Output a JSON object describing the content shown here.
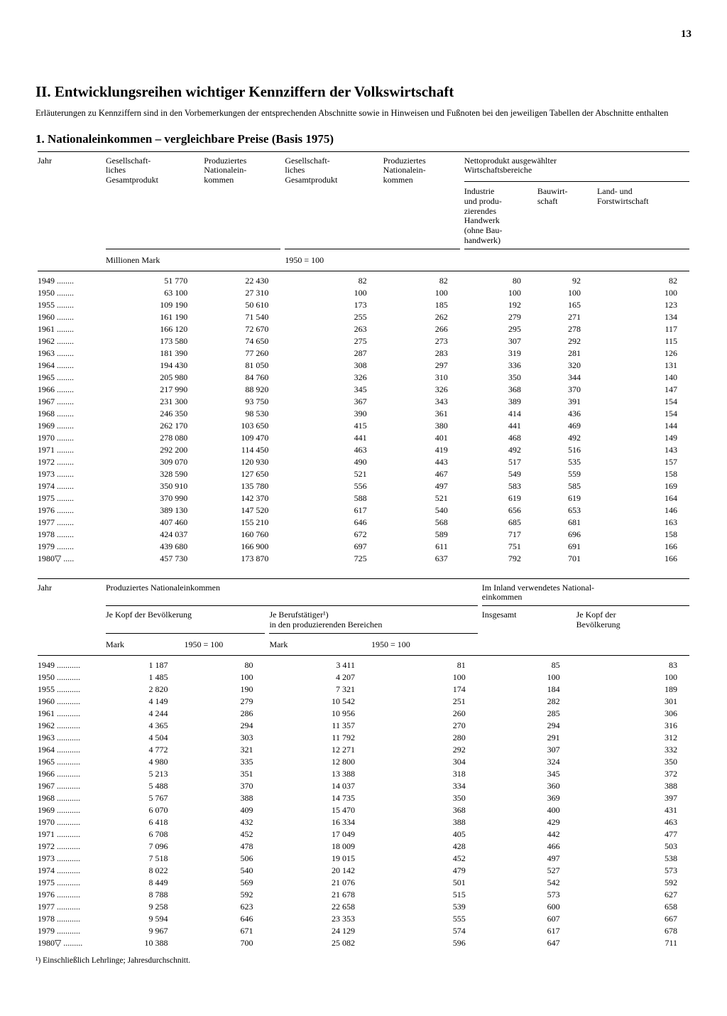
{
  "page_number": "13",
  "main_heading": "II. Entwicklungsreihen wichtiger Kennziffern der Volkswirtschaft",
  "intro_text": "Erläuterungen zu Kennziffern sind in den Vorbemerkungen der entsprechenden Abschnitte sowie in Hinweisen und Fußnoten bei den jeweiligen Tabellen der Abschnitte enthalten",
  "section_heading": "1. Nationaleinkommen – vergleichbare Preise (Basis 1975)",
  "table1": {
    "col_year": "Jahr",
    "col_gsp": "Gesellschaft-\nliches\nGesamtprodukt",
    "col_pni": "Produziertes\nNationalein-\nkommen",
    "col_gsp2": "Gesellschaft-\nliches\nGesamtprodukt",
    "col_pni2": "Produziertes\nNationalein-\nkommen",
    "col_netto_group": "Nettoprodukt ausgewählter\nWirtschaftsbereiche",
    "col_ind": "Industrie\nund produ-\nzierendes\nHandwerk\n(ohne Bau-\nhandwerk)",
    "col_bau": "Bauwirt-\nschaft",
    "col_land": "Land- und\nForstwirtschaft",
    "unit_mill": "Millionen Mark",
    "unit_idx": "1950 = 100",
    "rows": [
      {
        "y": "1949",
        "dots": "........",
        "c": [
          "51 770",
          "22 430",
          "82",
          "82",
          "80",
          "92",
          "82"
        ]
      },
      {
        "y": "1950",
        "dots": "........",
        "c": [
          "63 100",
          "27 310",
          "100",
          "100",
          "100",
          "100",
          "100"
        ]
      },
      {
        "y": "1955",
        "dots": "........",
        "c": [
          "109 190",
          "50 610",
          "173",
          "185",
          "192",
          "165",
          "123"
        ]
      },
      {
        "y": "1960",
        "dots": "........",
        "c": [
          "161 190",
          "71 540",
          "255",
          "262",
          "279",
          "271",
          "134"
        ]
      },
      {
        "y": "1961",
        "dots": "........",
        "c": [
          "166 120",
          "72 670",
          "263",
          "266",
          "295",
          "278",
          "117"
        ]
      },
      {
        "y": "1962",
        "dots": "........",
        "c": [
          "173 580",
          "74 650",
          "275",
          "273",
          "307",
          "292",
          "115"
        ]
      },
      {
        "y": "1963",
        "dots": "........",
        "c": [
          "181 390",
          "77 260",
          "287",
          "283",
          "319",
          "281",
          "126"
        ]
      },
      {
        "y": "1964",
        "dots": "........",
        "c": [
          "194 430",
          "81 050",
          "308",
          "297",
          "336",
          "320",
          "131"
        ]
      },
      {
        "y": "1965",
        "dots": "........",
        "c": [
          "205 980",
          "84 760",
          "326",
          "310",
          "350",
          "344",
          "140"
        ]
      },
      {
        "y": "1966",
        "dots": "........",
        "c": [
          "217 990",
          "88 920",
          "345",
          "326",
          "368",
          "370",
          "147"
        ]
      },
      {
        "y": "1967",
        "dots": "........",
        "c": [
          "231 300",
          "93 750",
          "367",
          "343",
          "389",
          "391",
          "154"
        ]
      },
      {
        "y": "1968",
        "dots": "........",
        "c": [
          "246 350",
          "98 530",
          "390",
          "361",
          "414",
          "436",
          "154"
        ]
      },
      {
        "y": "1969",
        "dots": "........",
        "c": [
          "262 170",
          "103 650",
          "415",
          "380",
          "441",
          "469",
          "144"
        ]
      },
      {
        "y": "1970",
        "dots": "........",
        "c": [
          "278 080",
          "109 470",
          "441",
          "401",
          "468",
          "492",
          "149"
        ]
      },
      {
        "y": "1971",
        "dots": "........",
        "c": [
          "292 200",
          "114 450",
          "463",
          "419",
          "492",
          "516",
          "143"
        ]
      },
      {
        "y": "1972",
        "dots": "........",
        "c": [
          "309 070",
          "120 930",
          "490",
          "443",
          "517",
          "535",
          "157"
        ]
      },
      {
        "y": "1973",
        "dots": "........",
        "c": [
          "328 590",
          "127 650",
          "521",
          "467",
          "549",
          "559",
          "158"
        ]
      },
      {
        "y": "1974",
        "dots": "........",
        "c": [
          "350 910",
          "135 780",
          "556",
          "497",
          "583",
          "585",
          "169"
        ]
      },
      {
        "y": "1975",
        "dots": "........",
        "c": [
          "370 990",
          "142 370",
          "588",
          "521",
          "619",
          "619",
          "164"
        ]
      },
      {
        "y": "1976",
        "dots": "........",
        "c": [
          "389 130",
          "147 520",
          "617",
          "540",
          "656",
          "653",
          "146"
        ]
      },
      {
        "y": "1977",
        "dots": "........",
        "c": [
          "407 460",
          "155 210",
          "646",
          "568",
          "685",
          "681",
          "163"
        ]
      },
      {
        "y": "1978",
        "dots": "........",
        "c": [
          "424 037",
          "160 760",
          "672",
          "589",
          "717",
          "696",
          "158"
        ]
      },
      {
        "y": "1979",
        "dots": "........",
        "c": [
          "439 680",
          "166 900",
          "697",
          "611",
          "751",
          "691",
          "166"
        ]
      },
      {
        "y": "1980▽",
        "dots": " .....",
        "c": [
          "457 730",
          "173 870",
          "725",
          "637",
          "792",
          "701",
          "166"
        ]
      }
    ]
  },
  "table2": {
    "col_year": "Jahr",
    "col_pni_group": "Produziertes Nationaleinkommen",
    "col_pop_group": "Je Kopf der Bevölkerung",
    "col_emp_group": "Je Berufstätiger¹)\nin den produzierenden Bereichen",
    "col_inland_group": "Im Inland verwendetes National-\neinkommen",
    "col_insg": "Insgesamt",
    "col_kopf": "Je Kopf der\nBevölkerung",
    "unit_mark": "Mark",
    "unit_idx": "1950 = 100",
    "rows": [
      {
        "y": "1949",
        "dots": " ...........",
        "c": [
          "1 187",
          "80",
          "3 411",
          "81",
          "85",
          "83"
        ]
      },
      {
        "y": "1950",
        "dots": " ...........",
        "c": [
          "1 485",
          "100",
          "4 207",
          "100",
          "100",
          "100"
        ]
      },
      {
        "y": "1955",
        "dots": " ...........",
        "c": [
          "2 820",
          "190",
          "7 321",
          "174",
          "184",
          "189"
        ]
      },
      {
        "y": "1960",
        "dots": " ...........",
        "c": [
          "4 149",
          "279",
          "10 542",
          "251",
          "282",
          "301"
        ]
      },
      {
        "y": "1961",
        "dots": " ...........",
        "c": [
          "4 244",
          "286",
          "10 956",
          "260",
          "285",
          "306"
        ]
      },
      {
        "y": "1962",
        "dots": " ...........",
        "c": [
          "4 365",
          "294",
          "11 357",
          "270",
          "294",
          "316"
        ]
      },
      {
        "y": "1963",
        "dots": " ...........",
        "c": [
          "4 504",
          "303",
          "11 792",
          "280",
          "291",
          "312"
        ]
      },
      {
        "y": "1964",
        "dots": " ...........",
        "c": [
          "4 772",
          "321",
          "12 271",
          "292",
          "307",
          "332"
        ]
      },
      {
        "y": "1965",
        "dots": " ...........",
        "c": [
          "4 980",
          "335",
          "12 800",
          "304",
          "324",
          "350"
        ]
      },
      {
        "y": "1966",
        "dots": " ...........",
        "c": [
          "5 213",
          "351",
          "13 388",
          "318",
          "345",
          "372"
        ]
      },
      {
        "y": "1967",
        "dots": " ...........",
        "c": [
          "5 488",
          "370",
          "14 037",
          "334",
          "360",
          "388"
        ]
      },
      {
        "y": "1968",
        "dots": " ...........",
        "c": [
          "5 767",
          "388",
          "14 735",
          "350",
          "369",
          "397"
        ]
      },
      {
        "y": "1969",
        "dots": " ...........",
        "c": [
          "6 070",
          "409",
          "15 470",
          "368",
          "400",
          "431"
        ]
      },
      {
        "y": "1970",
        "dots": " ...........",
        "c": [
          "6 418",
          "432",
          "16 334",
          "388",
          "429",
          "463"
        ]
      },
      {
        "y": "1971",
        "dots": " ...........",
        "c": [
          "6 708",
          "452",
          "17 049",
          "405",
          "442",
          "477"
        ]
      },
      {
        "y": "1972",
        "dots": " ...........",
        "c": [
          "7 096",
          "478",
          "18 009",
          "428",
          "466",
          "503"
        ]
      },
      {
        "y": "1973",
        "dots": " ...........",
        "c": [
          "7 518",
          "506",
          "19 015",
          "452",
          "497",
          "538"
        ]
      },
      {
        "y": "1974",
        "dots": " ...........",
        "c": [
          "8 022",
          "540",
          "20 142",
          "479",
          "527",
          "573"
        ]
      },
      {
        "y": "1975",
        "dots": " ...........",
        "c": [
          "8 449",
          "569",
          "21 076",
          "501",
          "542",
          "592"
        ]
      },
      {
        "y": "1976",
        "dots": " ...........",
        "c": [
          "8 788",
          "592",
          "21 678",
          "515",
          "573",
          "627"
        ]
      },
      {
        "y": "1977",
        "dots": " ...........",
        "c": [
          "9 258",
          "623",
          "22 658",
          "539",
          "600",
          "658"
        ]
      },
      {
        "y": "1978",
        "dots": " ...........",
        "c": [
          "9 594",
          "646",
          "23 353",
          "555",
          "607",
          "667"
        ]
      },
      {
        "y": "1979",
        "dots": " ...........",
        "c": [
          "9 967",
          "671",
          "24 129",
          "574",
          "617",
          "678"
        ]
      },
      {
        "y": "1980▽",
        "dots": "  .........",
        "c": [
          "10 388",
          "700",
          "25 082",
          "596",
          "647",
          "711"
        ]
      }
    ]
  },
  "footnote": "¹) Einschließlich Lehrlinge; Jahresdurchschnitt."
}
